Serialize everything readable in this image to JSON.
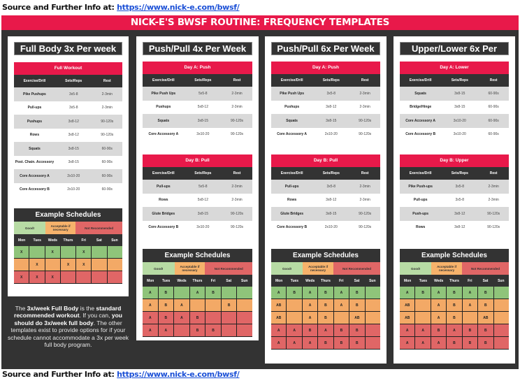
{
  "source": {
    "label": "Source and Further Info at:",
    "url": "https://www.nick-e.com/bwsf/"
  },
  "banner": "NICK-E'S BWSF ROUTINE: FREQUENCY TEMPLATES",
  "colors": {
    "accent_red": "#e8194a",
    "dark": "#333333",
    "good": "#8fc47a",
    "acceptable": "#f3a966",
    "not_recommended": "#e06666"
  },
  "columns_header": [
    "Exercise/Drill",
    "Sets/Reps",
    "Rest"
  ],
  "legend": {
    "good": "Good!",
    "acceptable": "Acceptable if necessary",
    "not": "Not Recommended"
  },
  "schedule_title": "Example Schedules",
  "weekdays": [
    "Mon",
    "Tues",
    "Weds",
    "Thurs",
    "Fri",
    "Sat",
    "Sun"
  ],
  "cards": [
    {
      "title": "Full Body 3x Per week",
      "days": [
        {
          "label": "Full Workout",
          "rows": [
            [
              "Pike Pushups",
              "3x5-8",
              "2-3min"
            ],
            [
              "Pull-ups",
              "3x5-8",
              "2-3min"
            ],
            [
              "Pushups",
              "3x8-12",
              "90-120s"
            ],
            [
              "Rows",
              "3x8-12",
              "90-120s"
            ],
            [
              "Squats",
              "3x8-15",
              "60-90s"
            ],
            [
              "Post. Chain. Accessory",
              "3x8-15",
              "60-90s"
            ],
            [
              "Core Accessory A",
              "2x10-20",
              "60-90s"
            ],
            [
              "Core Accessory B",
              "2x10-20",
              "60-90s"
            ]
          ]
        }
      ],
      "schedule": [
        {
          "rating": "good",
          "cells": [
            "X",
            "",
            "X",
            "",
            "X",
            "",
            ""
          ]
        },
        {
          "rating": "acceptable",
          "cells": [
            "",
            "X",
            "",
            "X",
            "X",
            "",
            ""
          ]
        },
        {
          "rating": "not",
          "cells": [
            "X",
            "X",
            "X",
            "",
            "",
            "",
            ""
          ]
        }
      ],
      "note": {
        "p1": "The ",
        "b1": "3x/week Full Body",
        "p2": " is the ",
        "b2": "standard recommended workout",
        "p3": ". If you can, ",
        "b3": "you should do 3x/week full body",
        "p4": ". The other templates exist to provide options for if your schedule cannot accommodate a 3x per week full body program."
      }
    },
    {
      "title": "Push/Pull 4x Per Week",
      "days": [
        {
          "label": "Day A: Push",
          "rows": [
            [
              "Pike Push Ups",
              "5x5-8",
              "2-3min"
            ],
            [
              "Pushups",
              "5x8-12",
              "2-3min"
            ],
            [
              "Squats",
              "3x8-15",
              "90-120s"
            ],
            [
              "Core Accessory A",
              "3x10-20",
              "90-120s"
            ]
          ]
        },
        {
          "label": "Day B: Pull",
          "rows": [
            [
              "Pull-ups",
              "5x5-8",
              "2-3min"
            ],
            [
              "Rows",
              "5x8-12",
              "2-3min"
            ],
            [
              "Glute Bridges",
              "3x8-15",
              "90-120s"
            ],
            [
              "Core Accessory B",
              "3x10-20",
              "90-120s"
            ]
          ]
        }
      ],
      "schedule": [
        {
          "rating": "good",
          "cells": [
            "A",
            "B",
            "",
            "A",
            "B",
            "",
            ""
          ]
        },
        {
          "rating": "acceptable",
          "cells": [
            "A",
            "B",
            "A",
            "",
            "",
            "B",
            ""
          ]
        },
        {
          "rating": "not",
          "cells": [
            "A",
            "B",
            "A",
            "B",
            "",
            "",
            ""
          ]
        },
        {
          "rating": "not",
          "cells": [
            "A",
            "A",
            "",
            "B",
            "B",
            "",
            ""
          ]
        }
      ]
    },
    {
      "title": "Push/Pull 6x Per Week",
      "days": [
        {
          "label": "Day A: Push",
          "rows": [
            [
              "Pike Push Ups",
              "3x5-8",
              "2-3min"
            ],
            [
              "Pushups",
              "3x8-12",
              "2-3min"
            ],
            [
              "Squats",
              "3x8-15",
              "90-120s"
            ],
            [
              "Core Accessory A",
              "2x10-20",
              "90-120s"
            ]
          ]
        },
        {
          "label": "Day B: Pull",
          "rows": [
            [
              "Pull-ups",
              "3x5-8",
              "2-3min"
            ],
            [
              "Rows",
              "3x8-12",
              "2-3min"
            ],
            [
              "Glute Bridges",
              "3x8-15",
              "90-120s"
            ],
            [
              "Core Accessory B",
              "2x10-20",
              "90-120s"
            ]
          ]
        }
      ],
      "schedule": [
        {
          "rating": "good",
          "cells": [
            "A",
            "B",
            "A",
            "B",
            "A",
            "B",
            ""
          ]
        },
        {
          "rating": "acceptable",
          "cells": [
            "AB",
            "",
            "A",
            "B",
            "A",
            "B",
            ""
          ]
        },
        {
          "rating": "acceptable",
          "cells": [
            "AB",
            "",
            "A",
            "B",
            "",
            "AB",
            ""
          ]
        },
        {
          "rating": "not",
          "cells": [
            "A",
            "A",
            "B",
            "A",
            "B",
            "B",
            ""
          ]
        },
        {
          "rating": "not",
          "cells": [
            "A",
            "A",
            "A",
            "B",
            "B",
            "B",
            ""
          ]
        }
      ]
    },
    {
      "title": "Upper/Lower 6x Per Week",
      "days": [
        {
          "label": "Day A: Lower",
          "rows": [
            [
              "Squats",
              "3x8-15",
              "60-90s"
            ],
            [
              "Bridge/Hinge",
              "3x8-15",
              "60-90s"
            ],
            [
              "Core Accessory A",
              "3x10-20",
              "60-90s"
            ],
            [
              "Core Accessory B",
              "3x10-20",
              "60-90s"
            ]
          ]
        },
        {
          "label": "Day B: Upper",
          "rows": [
            [
              "Pike Push-ups",
              "3x5-8",
              "2-3min"
            ],
            [
              "Pull-ups",
              "3x5-8",
              "2-3min"
            ],
            [
              "Push-ups",
              "3x8-12",
              "90-120s"
            ],
            [
              "Rows",
              "3x8-12",
              "90-120s"
            ]
          ]
        }
      ],
      "schedule": [
        {
          "rating": "good",
          "cells": [
            "A",
            "B",
            "A",
            "B",
            "A",
            "B",
            ""
          ]
        },
        {
          "rating": "acceptable",
          "cells": [
            "AB",
            "",
            "A",
            "B",
            "A",
            "B",
            ""
          ]
        },
        {
          "rating": "acceptable",
          "cells": [
            "AB",
            "",
            "A",
            "B",
            "",
            "AB",
            ""
          ]
        },
        {
          "rating": "not",
          "cells": [
            "A",
            "A",
            "B",
            "A",
            "B",
            "B",
            ""
          ]
        },
        {
          "rating": "not",
          "cells": [
            "A",
            "A",
            "A",
            "B",
            "B",
            "B",
            ""
          ]
        }
      ]
    }
  ]
}
